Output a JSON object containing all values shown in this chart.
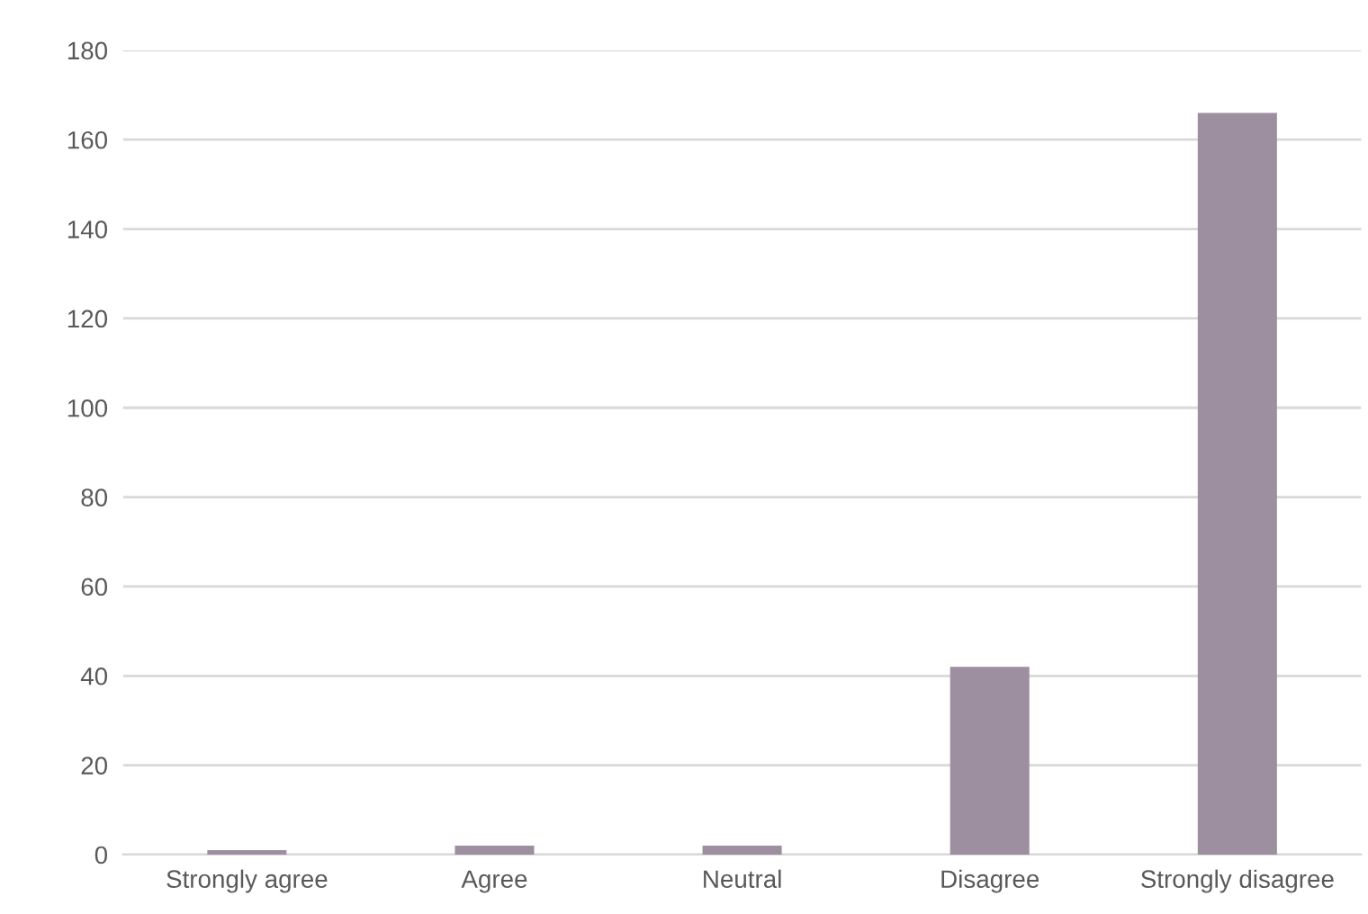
{
  "chart_data": {
    "type": "bar",
    "categories": [
      "Strongly agree",
      "Agree",
      "Neutral",
      "Disagree",
      "Strongly disagree"
    ],
    "values": [
      1,
      2,
      2,
      42,
      166
    ],
    "color": "#9d8fa0",
    "ylim": [
      0,
      180
    ],
    "yticks": [
      0,
      20,
      40,
      60,
      80,
      100,
      120,
      140,
      160,
      180
    ],
    "grid": "y"
  }
}
